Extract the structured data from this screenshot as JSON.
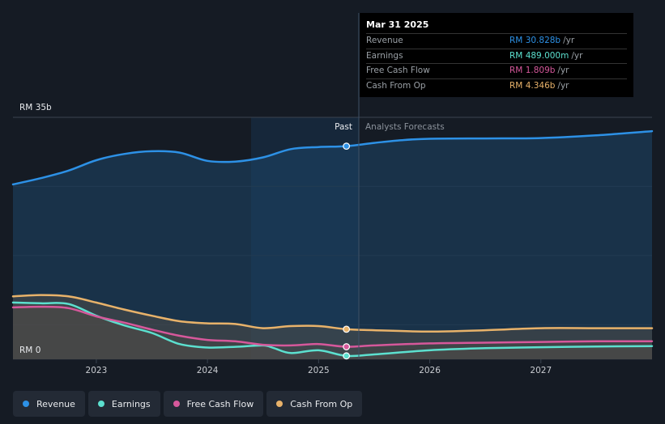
{
  "chart_data": {
    "type": "area",
    "y_axis": {
      "top_label": "RM 35b",
      "bottom_label": "RM 0",
      "ylim": [
        0,
        35
      ]
    },
    "x_axis": {
      "range": [
        2022.25,
        2028.0
      ],
      "ticks": [
        "2023",
        "2024",
        "2025",
        "2026",
        "2027"
      ],
      "tick_values": [
        2023,
        2024,
        2025,
        2026,
        2027
      ]
    },
    "divider": {
      "x": 2025.25,
      "past_label": "Past",
      "forecast_label": "Analysts Forecasts",
      "past_shade_from": 2024.25
    },
    "series": [
      {
        "name": "Revenue",
        "color": "#2d91e6",
        "points": [
          [
            2022.25,
            25.3
          ],
          [
            2022.5,
            26.2
          ],
          [
            2022.75,
            27.3
          ],
          [
            2023.0,
            28.8
          ],
          [
            2023.25,
            29.7
          ],
          [
            2023.5,
            30.1
          ],
          [
            2023.75,
            29.9
          ],
          [
            2024.0,
            28.7
          ],
          [
            2024.25,
            28.6
          ],
          [
            2024.5,
            29.2
          ],
          [
            2024.75,
            30.4
          ],
          [
            2025.0,
            30.7
          ],
          [
            2025.25,
            30.828
          ],
          [
            2025.5,
            31.3
          ],
          [
            2025.75,
            31.7
          ],
          [
            2026.0,
            31.9
          ],
          [
            2026.5,
            31.95
          ],
          [
            2027.0,
            32.0
          ],
          [
            2027.5,
            32.4
          ],
          [
            2028.0,
            33.0
          ]
        ]
      },
      {
        "name": "Earnings",
        "color": "#5ce0cf",
        "points": [
          [
            2022.25,
            8.2
          ],
          [
            2022.5,
            8.1
          ],
          [
            2022.75,
            8.0
          ],
          [
            2023.0,
            6.3
          ],
          [
            2023.25,
            4.9
          ],
          [
            2023.5,
            3.8
          ],
          [
            2023.75,
            2.2
          ],
          [
            2024.0,
            1.7
          ],
          [
            2024.25,
            1.8
          ],
          [
            2024.5,
            2.0
          ],
          [
            2024.6,
            1.6
          ],
          [
            2024.75,
            0.9
          ],
          [
            2025.0,
            1.3
          ],
          [
            2025.25,
            0.489
          ],
          [
            2025.5,
            0.7
          ],
          [
            2026.0,
            1.3
          ],
          [
            2026.5,
            1.6
          ],
          [
            2027.0,
            1.75
          ],
          [
            2027.5,
            1.85
          ],
          [
            2028.0,
            1.9
          ]
        ]
      },
      {
        "name": "Free Cash Flow",
        "color": "#d6589b",
        "points": [
          [
            2022.25,
            7.5
          ],
          [
            2022.5,
            7.6
          ],
          [
            2022.75,
            7.4
          ],
          [
            2023.0,
            6.2
          ],
          [
            2023.25,
            5.3
          ],
          [
            2023.5,
            4.3
          ],
          [
            2023.75,
            3.4
          ],
          [
            2024.0,
            2.8
          ],
          [
            2024.25,
            2.6
          ],
          [
            2024.5,
            2.1
          ],
          [
            2024.75,
            2.0
          ],
          [
            2025.0,
            2.2
          ],
          [
            2025.25,
            1.809
          ],
          [
            2025.5,
            2.0
          ],
          [
            2026.0,
            2.3
          ],
          [
            2026.5,
            2.4
          ],
          [
            2027.0,
            2.5
          ],
          [
            2027.5,
            2.6
          ],
          [
            2028.0,
            2.6
          ]
        ]
      },
      {
        "name": "Cash From Op",
        "color": "#e8b26a",
        "points": [
          [
            2022.25,
            9.1
          ],
          [
            2022.5,
            9.3
          ],
          [
            2022.75,
            9.1
          ],
          [
            2023.0,
            8.2
          ],
          [
            2023.25,
            7.2
          ],
          [
            2023.5,
            6.3
          ],
          [
            2023.75,
            5.5
          ],
          [
            2024.0,
            5.2
          ],
          [
            2024.25,
            5.1
          ],
          [
            2024.5,
            4.5
          ],
          [
            2024.75,
            4.8
          ],
          [
            2025.0,
            4.8
          ],
          [
            2025.25,
            4.346
          ],
          [
            2025.5,
            4.2
          ],
          [
            2026.0,
            4.0
          ],
          [
            2026.5,
            4.2
          ],
          [
            2027.0,
            4.5
          ],
          [
            2027.5,
            4.5
          ],
          [
            2028.0,
            4.5
          ]
        ]
      }
    ]
  },
  "tooltip": {
    "date": "Mar 31 2025",
    "rows": [
      {
        "label": "Revenue",
        "value": "RM 30.828b",
        "unit": "/yr",
        "color": "#2d91e6"
      },
      {
        "label": "Earnings",
        "value": "RM 489.000m",
        "unit": "/yr",
        "color": "#5ce0cf"
      },
      {
        "label": "Free Cash Flow",
        "value": "RM 1.809b",
        "unit": "/yr",
        "color": "#d6589b"
      },
      {
        "label": "Cash From Op",
        "value": "RM 4.346b",
        "unit": "/yr",
        "color": "#e8b26a"
      }
    ]
  },
  "legend": [
    {
      "label": "Revenue",
      "color": "#2d91e6"
    },
    {
      "label": "Earnings",
      "color": "#5ce0cf"
    },
    {
      "label": "Free Cash Flow",
      "color": "#d6589b"
    },
    {
      "label": "Cash From Op",
      "color": "#e8b26a"
    }
  ]
}
